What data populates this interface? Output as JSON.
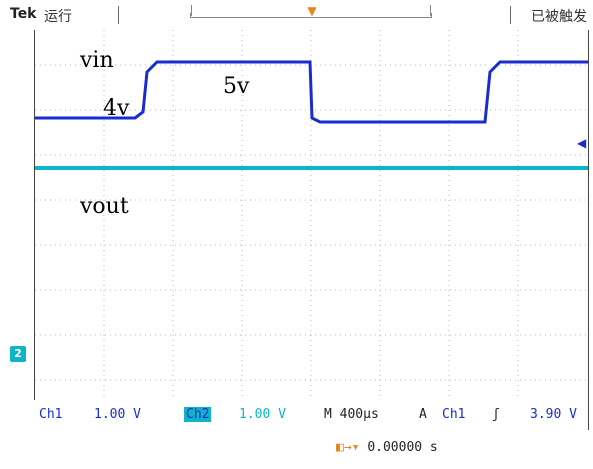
{
  "header": {
    "brand": "Tek",
    "run_state": "运行",
    "trigger_state": "已被触发"
  },
  "waveform_labels": {
    "vin": "vin",
    "four_v": "4v",
    "five_v": "5v",
    "vout": "vout"
  },
  "status": {
    "ch1_name": "Ch1",
    "ch1_scale": "1.00 V",
    "ch2_name": "Ch2",
    "ch2_scale": "1.00 V",
    "timebase": "M 400µs",
    "trigger_mode": "A",
    "trigger_source": "Ch1",
    "trigger_slope": "ʃ",
    "trigger_level": "3.90 V",
    "trigger_position": "0.00000 s"
  },
  "colors": {
    "ch1": "#1a2ccc",
    "ch2": "#0fb4c8",
    "trigger": "#e8861e"
  },
  "chart_data": {
    "type": "line",
    "series": [
      {
        "name": "vin",
        "x": [
          0,
          0.1,
          0.19,
          0.2,
          0.48,
          0.49,
          0.82,
          0.83,
          1.0
        ],
        "y": [
          2.4,
          2.4,
          2.4,
          3.6,
          3.6,
          2.4,
          2.4,
          3.6,
          3.6
        ]
      },
      {
        "name": "vout",
        "x": [
          0,
          1
        ],
        "y": [
          1.5,
          1.5
        ]
      }
    ]
  }
}
